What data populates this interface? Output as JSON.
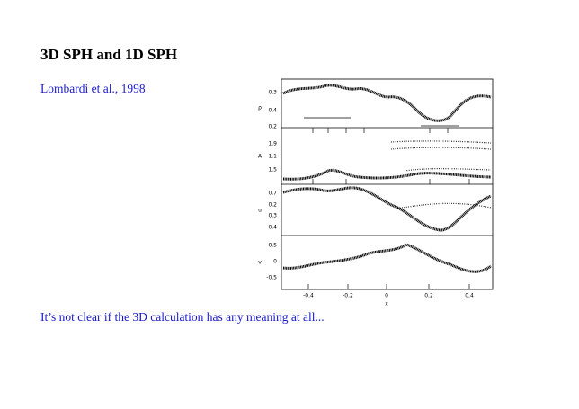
{
  "slide": {
    "title": "3D SPH and 1D SPH",
    "citation": "Lombardi et al., 1998",
    "caption": "It’s not clear if the 3D calculation has any meaning at all..."
  },
  "figure": {
    "panels": [
      {
        "ylabel": "ρ",
        "yticks": [
          "0.3",
          "0.4",
          "0.2"
        ]
      },
      {
        "ylabel": "A",
        "yticks": [
          "1.9",
          "1.1",
          "1.5"
        ]
      },
      {
        "ylabel": "u",
        "yticks": [
          "0.7",
          "0.2",
          "0.3",
          "0.4"
        ]
      },
      {
        "ylabel": "v",
        "yticks": [
          "0.5",
          "0",
          "-0.5"
        ]
      }
    ],
    "xticks": [
      "-0.4",
      "-0.2",
      "0",
      "0.2",
      "0.4"
    ],
    "xlabel": "x"
  }
}
